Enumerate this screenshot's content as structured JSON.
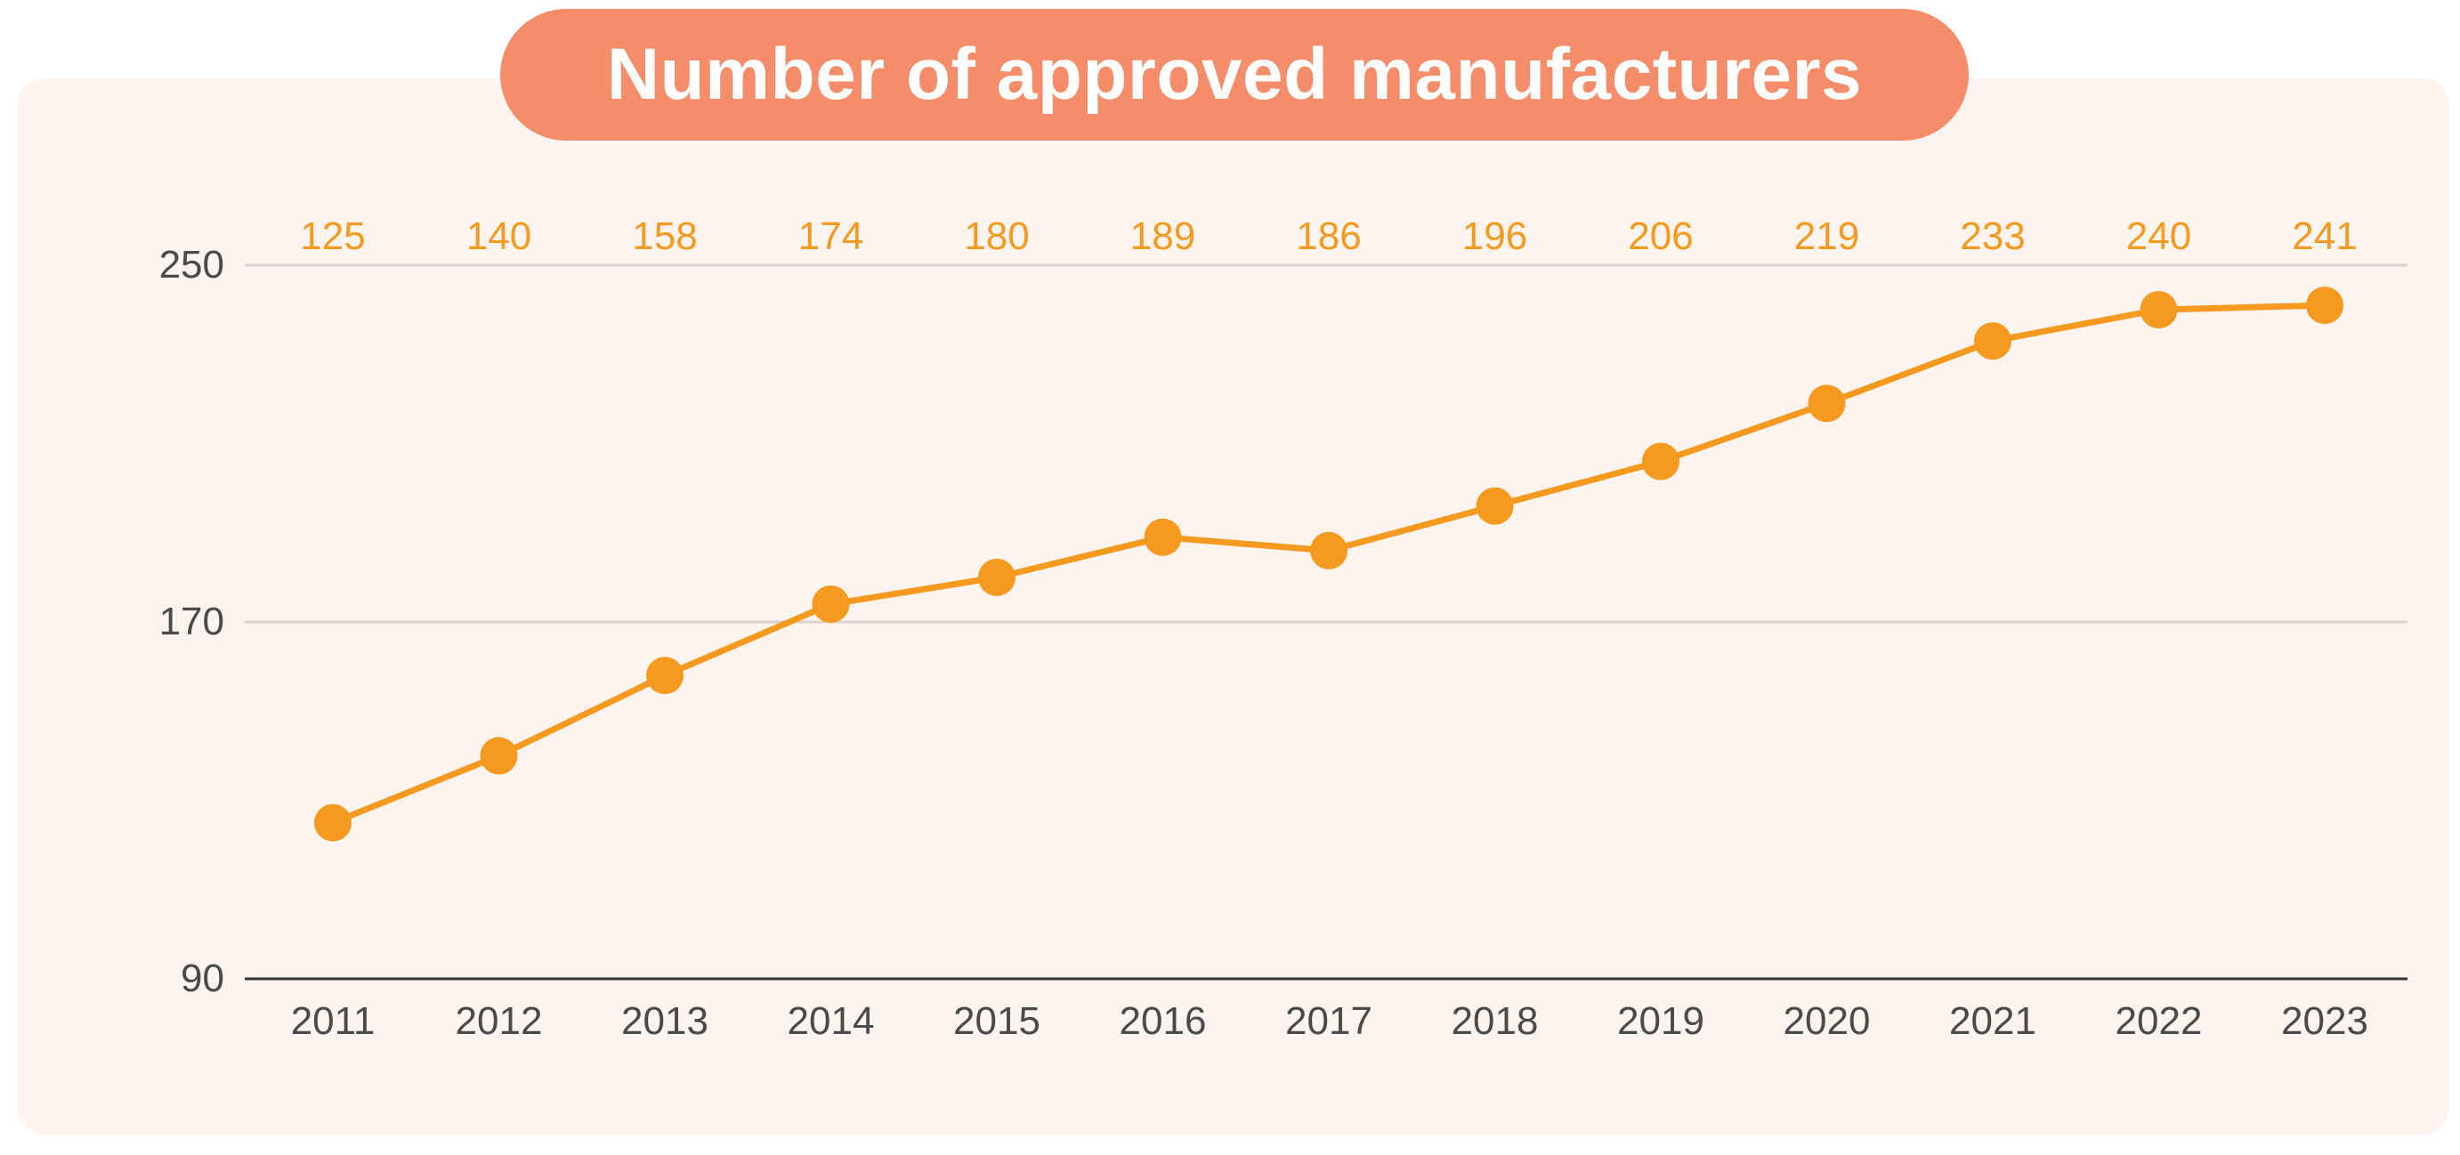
{
  "title": "Number of approved manufacturers",
  "colors": {
    "card_background": "#fdf3ef",
    "title_pill": "#f58c6a",
    "title_text": "#ffffff",
    "line": "#f59a1e",
    "data_labels": "#f59a1e",
    "gridline": "#d9d2d2",
    "baseline": "#333333",
    "tick_text": "#4a4a4a"
  },
  "chart_data": {
    "type": "line",
    "title": "Number of approved manufacturers",
    "categories": [
      "2011",
      "2012",
      "2013",
      "2014",
      "2015",
      "2016",
      "2017",
      "2018",
      "2019",
      "2020",
      "2021",
      "2022",
      "2023"
    ],
    "series": [
      {
        "values": [
          125,
          140,
          158,
          174,
          180,
          189,
          186,
          196,
          206,
          219,
          233,
          240,
          241
        ]
      }
    ],
    "ylim": [
      90,
      250
    ],
    "yticks": [
      "90",
      "170",
      "250"
    ],
    "xlabel": "",
    "ylabel": "",
    "grid": true,
    "legend": "none",
    "data_labels_position": "top-row"
  }
}
